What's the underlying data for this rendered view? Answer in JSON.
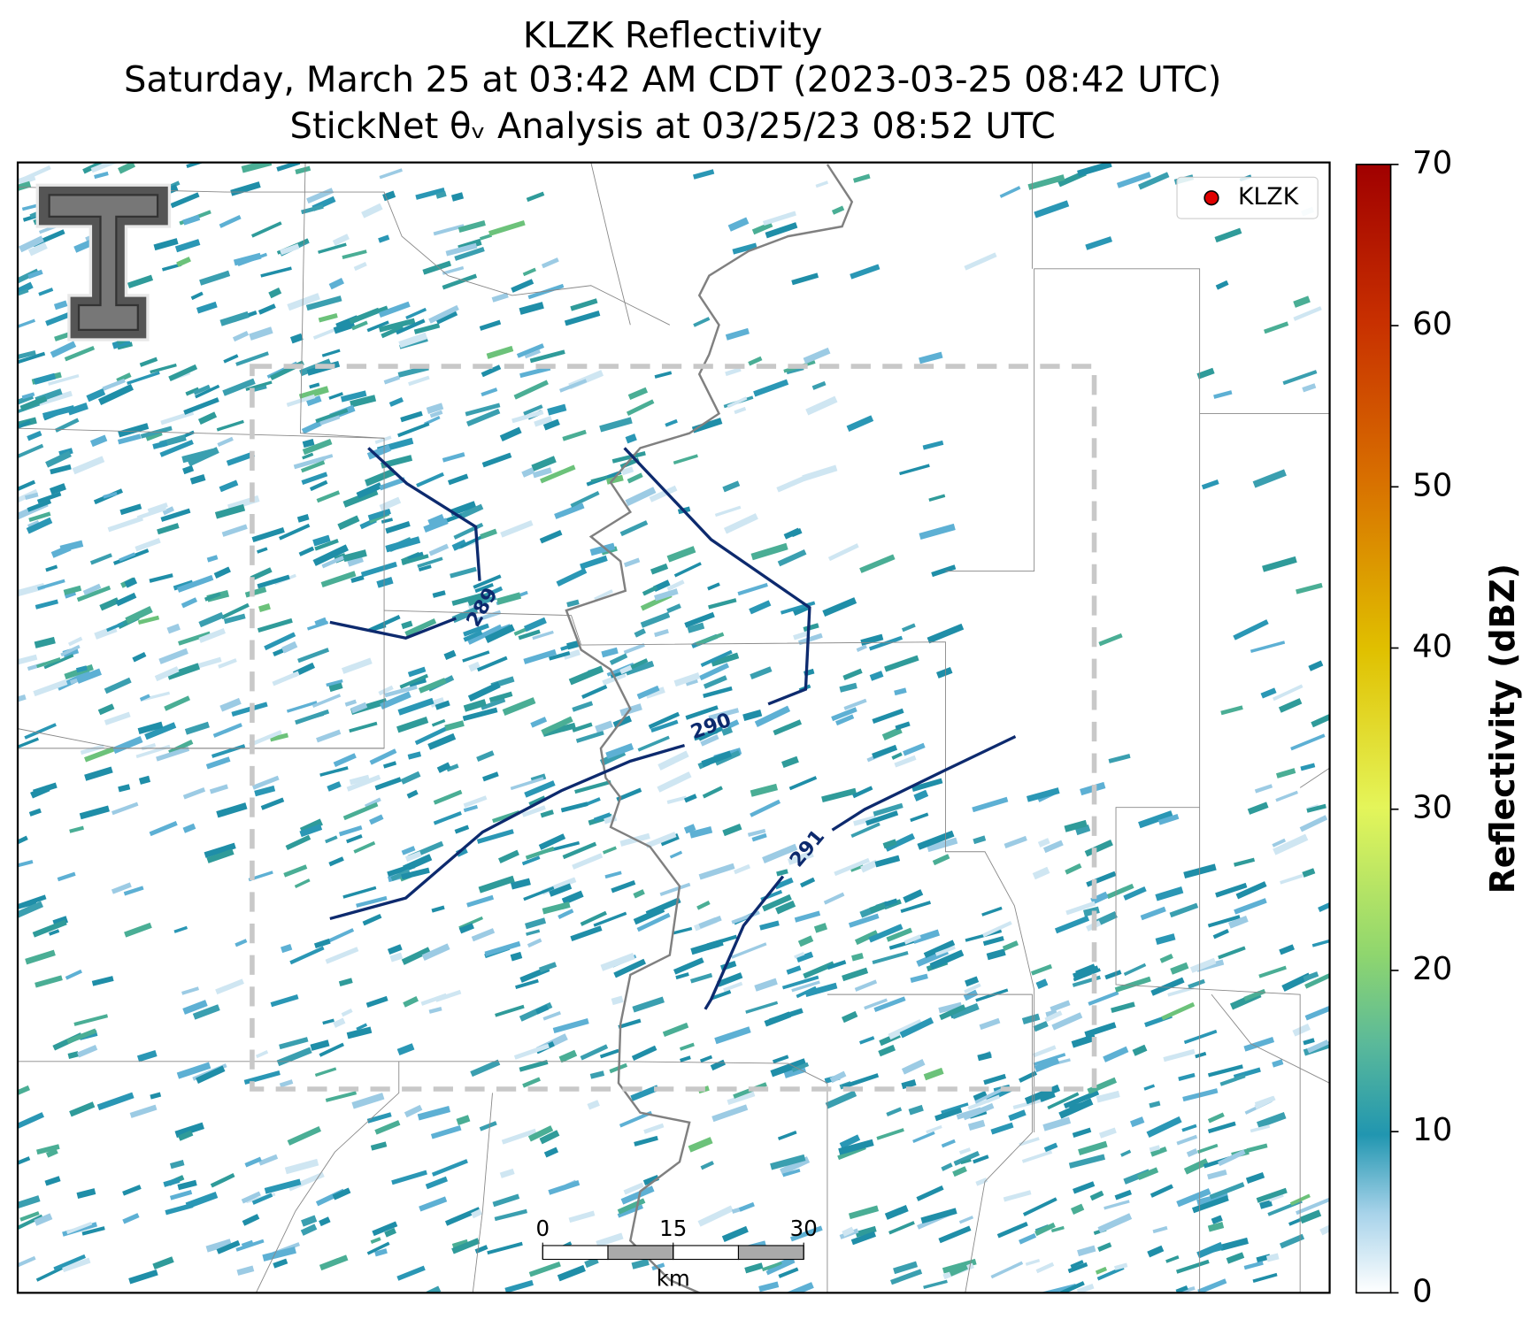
{
  "title": {
    "station_line": "KLZK Reflectivity",
    "time_line": "Saturday, March 25 at 03:42 AM CDT (2023-03-25 08:42 UTC)",
    "analysis_line": "StickNet θᵥ Analysis at 03/25/23 08:52 UTC"
  },
  "legend": {
    "label": "KLZK"
  },
  "contours": [
    {
      "level": 289
    },
    {
      "level": 290
    },
    {
      "level": 291
    }
  ],
  "scale_bar": {
    "ticks": [
      0,
      15,
      30
    ],
    "unit": "km"
  },
  "colorbar": {
    "label": "Reflectivity (dBZ)",
    "ylim": [
      0,
      70
    ],
    "yticks": [
      0,
      10,
      20,
      30,
      40,
      50,
      60,
      70
    ]
  }
}
